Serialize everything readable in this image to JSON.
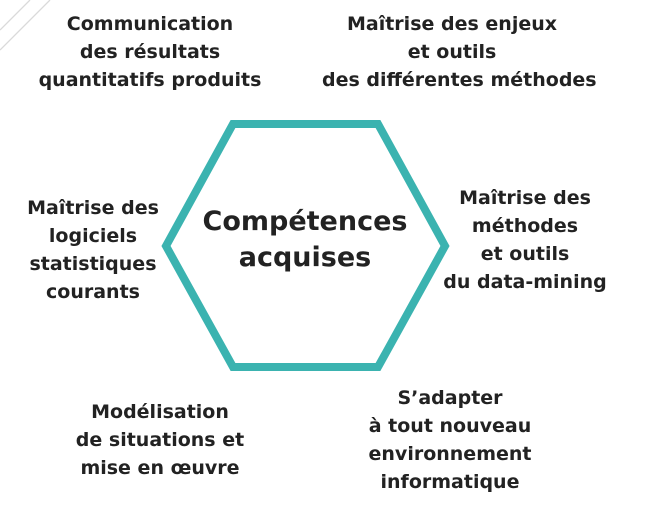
{
  "colors": {
    "hexagon_stroke": "#3BB3B0",
    "text": "#222222",
    "stripe": "#DADADA"
  },
  "center": {
    "line1": "Compétences",
    "line2": "acquises"
  },
  "nodes": {
    "top_left": [
      "Communication",
      "des résultats",
      "quantitatifs produits"
    ],
    "top_right": [
      "Maîtrise des enjeux",
      "et outils",
      "des différentes méthodes"
    ],
    "left": [
      "Maîtrise des",
      "logiciels",
      "statistiques",
      "courants"
    ],
    "right": [
      "Maîtrise des",
      "méthodes",
      "et outils",
      "du data-mining"
    ],
    "bottom_left": [
      "Modélisation",
      "de situations et",
      "mise en œuvre"
    ],
    "bottom_right": [
      "S’adapter",
      "à tout nouveau",
      "environnement",
      "informatique"
    ]
  }
}
